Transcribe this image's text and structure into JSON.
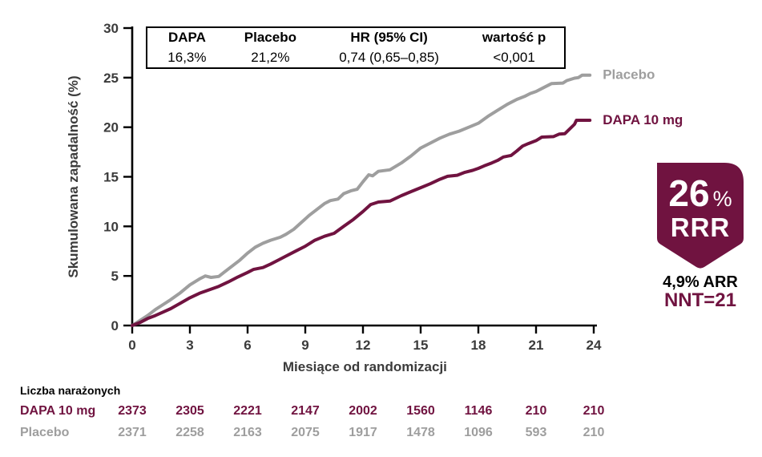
{
  "chart_data": {
    "type": "line",
    "title": "",
    "xlabel": "Miesiące od randomizacji",
    "ylabel": "Skumulowana zapadalność (%)",
    "xlim": [
      0,
      24
    ],
    "ylim": [
      0,
      30
    ],
    "x_ticks": [
      0,
      3,
      6,
      9,
      12,
      15,
      18,
      21,
      24
    ],
    "y_ticks": [
      0,
      5,
      10,
      15,
      20,
      25,
      30
    ],
    "grid": false,
    "legend_position": "end-of-line-labels",
    "series": [
      {
        "name": "Placebo",
        "color": "#9e9e9e",
        "points": [
          [
            0,
            0
          ],
          [
            0.4,
            0.5
          ],
          [
            0.8,
            1.0
          ],
          [
            1.2,
            1.6
          ],
          [
            1.6,
            2.1
          ],
          [
            2,
            2.6
          ],
          [
            2.5,
            3.3
          ],
          [
            3,
            4.1
          ],
          [
            3.5,
            4.7
          ],
          [
            3.8,
            5.0
          ],
          [
            4.1,
            4.85
          ],
          [
            4.5,
            4.95
          ],
          [
            4.8,
            5.4
          ],
          [
            5.2,
            6.0
          ],
          [
            5.6,
            6.6
          ],
          [
            6,
            7.3
          ],
          [
            6.4,
            7.9
          ],
          [
            6.8,
            8.3
          ],
          [
            7.2,
            8.6
          ],
          [
            7.7,
            8.9
          ],
          [
            8,
            9.2
          ],
          [
            8.4,
            9.7
          ],
          [
            8.8,
            10.4
          ],
          [
            9.2,
            11.1
          ],
          [
            9.6,
            11.7
          ],
          [
            10,
            12.3
          ],
          [
            10.3,
            12.6
          ],
          [
            10.7,
            12.75
          ],
          [
            11,
            13.3
          ],
          [
            11.4,
            13.6
          ],
          [
            11.7,
            13.75
          ],
          [
            12,
            14.5
          ],
          [
            12.3,
            15.2
          ],
          [
            12.5,
            15.1
          ],
          [
            12.8,
            15.55
          ],
          [
            13.4,
            15.7
          ],
          [
            14,
            16.4
          ],
          [
            14.5,
            17.1
          ],
          [
            15,
            17.9
          ],
          [
            15.5,
            18.4
          ],
          [
            16,
            18.9
          ],
          [
            16.5,
            19.3
          ],
          [
            17,
            19.6
          ],
          [
            17.5,
            20.0
          ],
          [
            18,
            20.4
          ],
          [
            18.5,
            21.1
          ],
          [
            19,
            21.7
          ],
          [
            19.5,
            22.3
          ],
          [
            20,
            22.8
          ],
          [
            20.4,
            23.1
          ],
          [
            20.7,
            23.4
          ],
          [
            21,
            23.6
          ],
          [
            21.4,
            24.0
          ],
          [
            21.8,
            24.4
          ],
          [
            22.4,
            24.45
          ],
          [
            22.6,
            24.7
          ],
          [
            23.0,
            24.95
          ],
          [
            23.2,
            25.0
          ],
          [
            23.4,
            25.25
          ],
          [
            23.8,
            25.25
          ]
        ]
      },
      {
        "name": "DAPA 10 mg",
        "color": "#701340",
        "points": [
          [
            0,
            0
          ],
          [
            0.4,
            0.3
          ],
          [
            0.8,
            0.7
          ],
          [
            1.2,
            1.0
          ],
          [
            1.6,
            1.35
          ],
          [
            2,
            1.7
          ],
          [
            2.5,
            2.25
          ],
          [
            3,
            2.8
          ],
          [
            3.5,
            3.25
          ],
          [
            4,
            3.6
          ],
          [
            4.5,
            3.95
          ],
          [
            5,
            4.4
          ],
          [
            5.5,
            4.9
          ],
          [
            6,
            5.35
          ],
          [
            6.3,
            5.65
          ],
          [
            6.8,
            5.85
          ],
          [
            7.2,
            6.2
          ],
          [
            7.6,
            6.6
          ],
          [
            8,
            7.0
          ],
          [
            8.5,
            7.5
          ],
          [
            9,
            8.0
          ],
          [
            9.5,
            8.6
          ],
          [
            10,
            9.0
          ],
          [
            10.5,
            9.3
          ],
          [
            11,
            10.0
          ],
          [
            11.5,
            10.7
          ],
          [
            12,
            11.5
          ],
          [
            12.4,
            12.2
          ],
          [
            12.8,
            12.45
          ],
          [
            13.4,
            12.55
          ],
          [
            14,
            13.1
          ],
          [
            14.5,
            13.5
          ],
          [
            15,
            13.9
          ],
          [
            15.5,
            14.3
          ],
          [
            16,
            14.75
          ],
          [
            16.4,
            15.05
          ],
          [
            16.9,
            15.15
          ],
          [
            17.3,
            15.45
          ],
          [
            17.7,
            15.65
          ],
          [
            18,
            15.85
          ],
          [
            18.3,
            16.1
          ],
          [
            18.7,
            16.4
          ],
          [
            19,
            16.65
          ],
          [
            19.3,
            17.0
          ],
          [
            19.7,
            17.15
          ],
          [
            20,
            17.6
          ],
          [
            20.3,
            18.1
          ],
          [
            20.6,
            18.35
          ],
          [
            21,
            18.65
          ],
          [
            21.3,
            19.0
          ],
          [
            21.9,
            19.05
          ],
          [
            22.2,
            19.3
          ],
          [
            22.5,
            19.35
          ],
          [
            23.0,
            20.3
          ],
          [
            23.1,
            20.7
          ],
          [
            23.8,
            20.7
          ]
        ]
      }
    ]
  },
  "stats_box": {
    "columns": [
      {
        "header": "DAPA",
        "value": "16,3%"
      },
      {
        "header": "Placebo",
        "value": "21,2%"
      },
      {
        "header": "HR (95% CI)",
        "value": "0,74 (0,65–0,85)"
      },
      {
        "header": "wartość p",
        "value": "<0,001"
      }
    ]
  },
  "badge": {
    "value": "26",
    "unit": "%",
    "label": "RRR",
    "arr": "4,9% ARR",
    "nnt": "NNT=21",
    "color": "#701340"
  },
  "risk_table": {
    "title": "Liczba narażonych",
    "rows": [
      {
        "label": "DAPA 10 mg",
        "color": "#701340",
        "values": [
          "2373",
          "2305",
          "2221",
          "2147",
          "2002",
          "1560",
          "1146",
          "210",
          "210"
        ]
      },
      {
        "label": "Placebo",
        "color": "#9e9e9e",
        "values": [
          "2371",
          "2258",
          "2163",
          "2075",
          "1917",
          "1478",
          "1096",
          "593",
          "210"
        ]
      }
    ]
  },
  "colors": {
    "dapa": "#701340",
    "placebo": "#9e9e9e",
    "axis": "#000000",
    "tick_text": "#3b3b3b"
  }
}
